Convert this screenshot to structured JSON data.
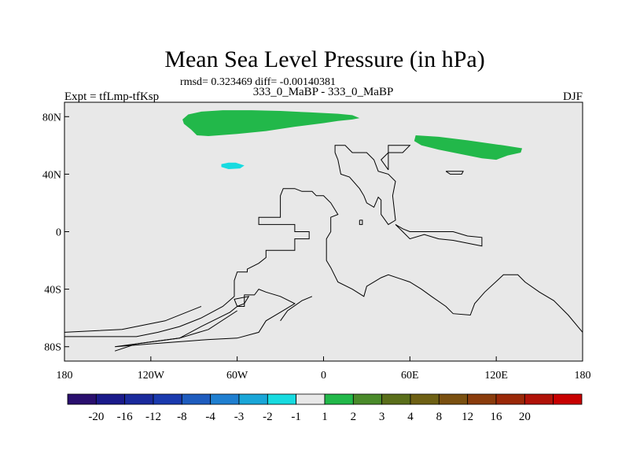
{
  "chart_data": {
    "type": "heatmap",
    "title": "Mean Sea Level Pressure (in hPa)",
    "subtitle": "rmsd= 0.323469 diff= -0.00140381",
    "left_label": "Expt = tfLmp-tfKsp",
    "center_label": "333_0_MaBP - 333_0_MaBP",
    "right_label": "DJF",
    "x_ticks": [
      {
        "value": -180,
        "label": "180"
      },
      {
        "value": -120,
        "label": "120W"
      },
      {
        "value": -60,
        "label": "60W"
      },
      {
        "value": 0,
        "label": "0"
      },
      {
        "value": 60,
        "label": "60E"
      },
      {
        "value": 120,
        "label": "120E"
      },
      {
        "value": 180,
        "label": "180"
      }
    ],
    "y_ticks": [
      {
        "value": 80,
        "label": "80N"
      },
      {
        "value": 40,
        "label": "40N"
      },
      {
        "value": 0,
        "label": "0"
      },
      {
        "value": -40,
        "label": "40S"
      },
      {
        "value": -80,
        "label": "80S"
      }
    ],
    "xlim": [
      -180,
      180
    ],
    "ylim": [
      -90,
      90
    ],
    "background_color": "#e8e8e8",
    "colorbar": {
      "colors": [
        "#2a0f6e",
        "#1a1a8a",
        "#1a2a9c",
        "#1a3aae",
        "#1e5cbe",
        "#1f7fd0",
        "#19a6d8",
        "#17dbe0",
        "#e8e8e8",
        "#22b84a",
        "#4a8a2a",
        "#5a6e1a",
        "#6e6014",
        "#7a5010",
        "#8a3c0c",
        "#9a2808",
        "#b01208",
        "#c80000"
      ],
      "labels": [
        "-20",
        "-16",
        "-12",
        "-8",
        "-4",
        "-3",
        "-2",
        "-1",
        "1",
        "2",
        "3",
        "4",
        "8",
        "12",
        "16",
        "20"
      ]
    },
    "anomalies": [
      {
        "name": "north-atlantic-positive",
        "level": "1 to 2",
        "color": "#22b84a",
        "outline": [
          [
            -98,
            78
          ],
          [
            -94,
            81.5
          ],
          [
            -85,
            83.5
          ],
          [
            -70,
            84.5
          ],
          [
            -50,
            84.5
          ],
          [
            -30,
            84
          ],
          [
            -10,
            83
          ],
          [
            10,
            82
          ],
          [
            20,
            81
          ],
          [
            25,
            79
          ],
          [
            20,
            78
          ],
          [
            10,
            77
          ],
          [
            0,
            75.5
          ],
          [
            -20,
            73
          ],
          [
            -40,
            70
          ],
          [
            -60,
            68
          ],
          [
            -80,
            66.5
          ],
          [
            -88,
            67
          ],
          [
            -92,
            71
          ],
          [
            -97,
            75
          ]
        ]
      },
      {
        "name": "north-pacific-east-positive",
        "level": "1 to 2",
        "color": "#22b84a",
        "outline": [
          [
            64,
            67
          ],
          [
            80,
            66
          ],
          [
            100,
            63.5
          ],
          [
            125,
            60
          ],
          [
            138,
            58
          ],
          [
            137,
            55
          ],
          [
            128,
            53
          ],
          [
            120,
            50
          ],
          [
            110,
            51
          ],
          [
            95,
            54
          ],
          [
            80,
            57
          ],
          [
            68,
            60
          ],
          [
            63,
            63
          ]
        ]
      },
      {
        "name": "midlatitude-negative",
        "level": "-2 to -1",
        "color": "#17dbe0",
        "outline": [
          [
            -71,
            47
          ],
          [
            -66,
            48
          ],
          [
            -61,
            48
          ],
          [
            -55,
            46
          ],
          [
            -58,
            44
          ],
          [
            -66,
            43.5
          ],
          [
            -71,
            45
          ]
        ]
      }
    ],
    "coastlines": [
      [
        [
          -180,
          -73
        ],
        [
          -130,
          -73
        ],
        [
          -115,
          -70
        ],
        [
          -100,
          -66
        ],
        [
          -85,
          -60
        ],
        [
          -70,
          -52
        ],
        [
          -62,
          -45
        ],
        [
          -62,
          -34
        ],
        [
          -60,
          -28
        ],
        [
          -53,
          -28
        ],
        [
          -53,
          -26
        ],
        [
          -45,
          -22
        ],
        [
          -40,
          -18
        ],
        [
          -40,
          -13
        ],
        [
          -20,
          -13
        ],
        [
          -20,
          -5
        ],
        [
          -10,
          -5
        ],
        [
          -10,
          0
        ],
        [
          -20,
          0
        ],
        [
          -20,
          5
        ],
        [
          -40,
          5
        ],
        [
          -45,
          5
        ],
        [
          -45,
          10
        ],
        [
          -30,
          10
        ],
        [
          -30,
          25
        ],
        [
          -28,
          30
        ],
        [
          -20,
          30
        ],
        [
          -15,
          28
        ],
        [
          -8,
          28
        ],
        [
          -5,
          25
        ],
        [
          0,
          25
        ],
        [
          5,
          20
        ],
        [
          10,
          12
        ],
        [
          5,
          10
        ],
        [
          5,
          0
        ],
        [
          2,
          -5
        ],
        [
          2,
          -20
        ],
        [
          5,
          -25
        ],
        [
          10,
          -35
        ],
        [
          20,
          -40
        ],
        [
          28,
          -45
        ],
        [
          30,
          -38
        ],
        [
          40,
          -32
        ],
        [
          45,
          -30
        ],
        [
          60,
          -35
        ],
        [
          68,
          -40
        ],
        [
          75,
          -45
        ],
        [
          85,
          -52
        ],
        [
          90,
          -57
        ],
        [
          102,
          -58
        ],
        [
          105,
          -50
        ],
        [
          112,
          -42
        ],
        [
          125,
          -30
        ],
        [
          135,
          -30
        ],
        [
          140,
          -35
        ],
        [
          150,
          -42
        ],
        [
          160,
          -48
        ],
        [
          170,
          -58
        ],
        [
          180,
          -70
        ]
      ],
      [
        [
          -145,
          -80
        ],
        [
          -100,
          -74
        ],
        [
          -85,
          -66
        ],
        [
          -65,
          -56
        ],
        [
          -60,
          -52
        ],
        [
          -55,
          -52
        ],
        [
          -55,
          -44
        ],
        [
          -48,
          -44
        ],
        [
          -45,
          -40
        ],
        [
          -40,
          -42
        ],
        [
          -30,
          -45
        ],
        [
          -20,
          -50
        ],
        [
          -30,
          -56
        ],
        [
          -40,
          -62
        ],
        [
          -45,
          -70
        ],
        [
          -60,
          -74
        ],
        [
          -80,
          -75
        ],
        [
          -120,
          -78
        ],
        [
          -145,
          -80
        ]
      ],
      [
        [
          -60,
          -55
        ],
        [
          -80,
          -68
        ],
        [
          -100,
          -74
        ],
        [
          -130,
          -78
        ],
        [
          -145,
          -83
        ]
      ],
      [
        [
          -60,
          -52
        ],
        [
          -62,
          -47
        ],
        [
          -52,
          -45
        ],
        [
          -55,
          -50
        ],
        [
          -60,
          -52
        ]
      ],
      [
        [
          -30,
          -62
        ],
        [
          -25,
          -55
        ],
        [
          -15,
          -48
        ],
        [
          -8,
          -45
        ]
      ],
      [
        [
          -180,
          -70
        ],
        [
          -140,
          -68
        ],
        [
          -110,
          -62
        ],
        [
          -85,
          -52
        ]
      ],
      [
        [
          8,
          55
        ],
        [
          10,
          50
        ],
        [
          12,
          40
        ],
        [
          18,
          38
        ],
        [
          25,
          30
        ],
        [
          28,
          25
        ],
        [
          30,
          20
        ],
        [
          35,
          17
        ],
        [
          38,
          24
        ],
        [
          40,
          22
        ],
        [
          40,
          12
        ],
        [
          45,
          5
        ],
        [
          50,
          8
        ],
        [
          48,
          25
        ],
        [
          50,
          35
        ],
        [
          45,
          40
        ],
        [
          38,
          42
        ],
        [
          35,
          50
        ],
        [
          30,
          55
        ],
        [
          20,
          55
        ],
        [
          15,
          60
        ],
        [
          8,
          60
        ],
        [
          8,
          55
        ]
      ],
      [
        [
          45,
          43
        ],
        [
          40,
          50
        ],
        [
          45,
          55
        ],
        [
          55,
          55
        ],
        [
          60,
          60
        ],
        [
          45,
          60
        ],
        [
          45,
          43
        ]
      ],
      [
        [
          50,
          5
        ],
        [
          55,
          0
        ],
        [
          60,
          -5
        ],
        [
          70,
          -2
        ],
        [
          80,
          -5
        ],
        [
          90,
          -6
        ],
        [
          100,
          -8
        ],
        [
          110,
          -10
        ],
        [
          110,
          -4
        ],
        [
          100,
          -3
        ],
        [
          90,
          0
        ],
        [
          80,
          0
        ],
        [
          70,
          0
        ],
        [
          60,
          0
        ],
        [
          55,
          2
        ],
        [
          50,
          5
        ]
      ],
      [
        [
          85,
          42
        ],
        [
          88,
          40
        ],
        [
          96,
          40
        ],
        [
          97,
          42
        ],
        [
          85,
          42
        ]
      ],
      [
        [
          25,
          8
        ],
        [
          27,
          8
        ],
        [
          27,
          5
        ],
        [
          25,
          5
        ],
        [
          25,
          8
        ]
      ]
    ]
  }
}
